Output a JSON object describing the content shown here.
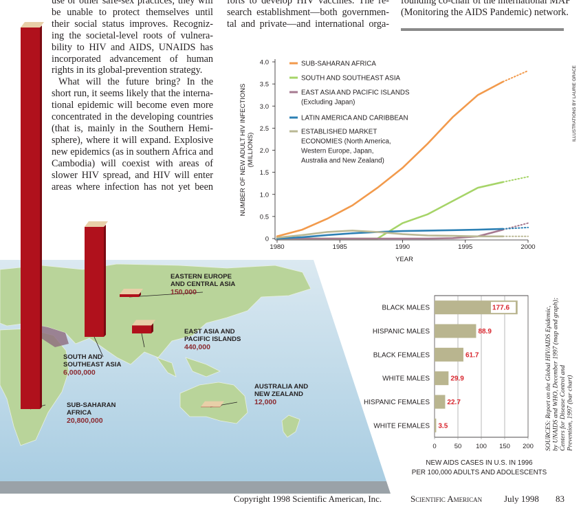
{
  "text_columns": [
    [
      "use or other safe-sex practices; they will",
      "be unable to protect themselves until",
      "their social status improves. Recogniz-",
      "ing the societal-level roots of vulnera-",
      "bility to HIV and AIDS, UNAIDS has",
      "incorporated advancement of human",
      "rights in its global-prevention strategy.",
      "What will the future bring? In the",
      "short run, it seems likely that the interna-",
      "tional epidemic will become even more",
      "concentrated in the developing countries",
      "(that is, mainly in the Southern Hemi-",
      "sphere), where it will expand. Explosive",
      "new epidemics (as in southern Africa and",
      "Cambodia) will coexist with areas of",
      "slower HIV spread, and HIV will enter",
      "areas where infection has not yet been"
    ],
    [
      "forts to develop HIV vaccines. The re-",
      "search establishment—both governmen-",
      "tal and private—and international orga-"
    ],
    [
      "founding co-chair of the international MAP",
      "(Monitoring the AIDS Pandemic) network."
    ]
  ],
  "credit": "ILLUSTRATIONS BY LAURIE GRACE",
  "sources": [
    "SOURCES: Report on the Global HIV/AIDS Epidemic,",
    "by UNAIDS and WHO, December 1997 (map and graph);",
    "Centers for Disease Control and",
    "Prevention, 1997 (bar chart)"
  ],
  "footer": {
    "copyright": "Copyright 1998 Scientific American, Inc.",
    "magazine": "Scientific American",
    "issue": "July 1998",
    "page": "83"
  },
  "chart_data": [
    {
      "type": "line",
      "ylabel": [
        "NUMBER OF NEW ADULT HIV INFECTIONS",
        "(MILLIONS)"
      ],
      "xlabel": "YEAR",
      "x": [
        1980,
        1982,
        1984,
        1986,
        1988,
        1990,
        1992,
        1994,
        1996,
        1998,
        2000
      ],
      "xlim": [
        1980,
        2000
      ],
      "xticks": [
        1980,
        1985,
        1990,
        1995,
        2000
      ],
      "ylim": [
        0,
        4
      ],
      "yticks": [
        0,
        0.5,
        {
          "value": 1,
          "label": "1.0"
        },
        1.5,
        {
          "value": 2,
          "label": "2.0"
        },
        2.5,
        {
          "value": 3,
          "label": "3.0"
        },
        3.5,
        {
          "value": 4,
          "label": "4.0"
        }
      ],
      "series": [
        {
          "name": [
            "SUB-SAHARAN AFRICA"
          ],
          "color": "#f29a4c",
          "values": [
            0.05,
            0.2,
            0.45,
            0.75,
            1.15,
            1.6,
            2.15,
            2.75,
            3.25,
            3.55,
            null
          ],
          "projected_values": [
            null,
            null,
            null,
            null,
            null,
            null,
            null,
            null,
            null,
            3.55,
            3.8
          ]
        },
        {
          "name": [
            "SOUTH AND SOUTHEAST ASIA"
          ],
          "color": "#a6d468",
          "values": [
            0,
            0,
            0,
            0,
            0,
            0.35,
            0.55,
            0.85,
            1.15,
            1.28,
            null
          ],
          "projected_values": [
            null,
            null,
            null,
            null,
            null,
            null,
            null,
            null,
            null,
            1.28,
            1.4
          ]
        },
        {
          "name": [
            "EAST ASIA AND PACIFIC ISLANDS",
            "(Excluding Japan)"
          ],
          "color": "#a67a90",
          "values": [
            0,
            0,
            0,
            0,
            0,
            0,
            0,
            0.01,
            0.05,
            0.2,
            null
          ],
          "projected_values": [
            null,
            null,
            null,
            null,
            null,
            null,
            null,
            null,
            null,
            0.2,
            0.35
          ]
        },
        {
          "name": [
            "LATIN AMERICA AND CARIBBEAN"
          ],
          "color": "#2c80b4",
          "values": [
            0,
            0.03,
            0.08,
            0.12,
            0.15,
            0.17,
            0.18,
            0.19,
            0.2,
            0.22,
            null
          ],
          "projected_values": [
            null,
            null,
            null,
            null,
            null,
            null,
            null,
            null,
            null,
            0.22,
            0.25
          ]
        },
        {
          "name": [
            "ESTABLISHED MARKET",
            "ECONOMIES (North America,",
            "Western Europe, Japan,",
            "Australia and New Zealand)"
          ],
          "color": "#bab894",
          "values": [
            0.02,
            0.08,
            0.15,
            0.18,
            0.15,
            0.1,
            0.07,
            0.06,
            0.05,
            0.05,
            null
          ],
          "projected_values": [
            null,
            null,
            null,
            null,
            null,
            null,
            null,
            null,
            null,
            0.05,
            0.05
          ]
        }
      ]
    },
    {
      "type": "hbar",
      "categories": [
        "BLACK MALES",
        "HISPANIC MALES",
        "BLACK FEMALES",
        "WHITE MALES",
        "HISPANIC FEMALES",
        "WHITE FEMALES"
      ],
      "values": [
        177.6,
        88.9,
        61.7,
        29.9,
        22.7,
        3.5
      ],
      "color": "#b9b58f",
      "label_color": "#d8262e",
      "xlim": [
        0,
        200
      ],
      "xticks": [
        0,
        50,
        100,
        150,
        200
      ],
      "xlabel": [
        "NEW AIDS CASES IN U.S. IN 1996",
        "PER 100,000 ADULTS AND ADOLESCENTS"
      ]
    },
    {
      "type": "map_bars",
      "categories": [
        [
          "SUB-SAHARAN",
          "AFRICA"
        ],
        [
          "SOUTH AND",
          "SOUTHEAST ASIA"
        ],
        [
          "EASTERN EUROPE",
          "AND CENTRAL ASIA"
        ],
        [
          "EAST ASIA AND",
          "PACIFIC ISLANDS"
        ],
        [
          "AUSTRALIA AND",
          "NEW ZEALAND"
        ]
      ],
      "values": [
        20800000,
        6000000,
        150000,
        440000,
        12000
      ],
      "value_labels": [
        "20,800,000",
        "6,000,000",
        "150,000",
        "440,000",
        "12,000"
      ],
      "color": "#b0111c"
    }
  ]
}
